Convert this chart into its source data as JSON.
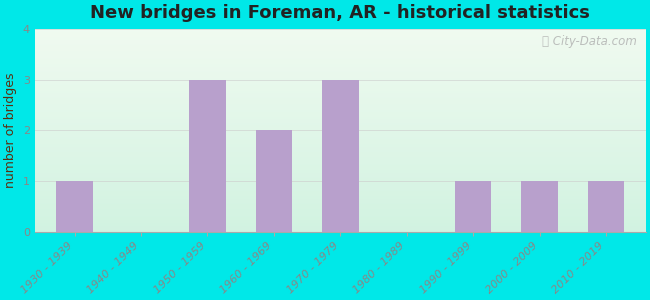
{
  "title": "New bridges in Foreman, AR - historical statistics",
  "categories": [
    "1930 - 1939",
    "1940 - 1949",
    "1950 - 1959",
    "1960 - 1969",
    "1970 - 1979",
    "1980 - 1989",
    "1990 - 1999",
    "2000 - 2009",
    "2010 - 2019"
  ],
  "values": [
    1,
    0,
    3,
    2,
    3,
    0,
    1,
    1,
    1
  ],
  "bar_color": "#b8a0cc",
  "ylabel": "number of bridges",
  "ylim": [
    0,
    4
  ],
  "yticks": [
    0,
    1,
    2,
    3,
    4
  ],
  "background_outer": "#00e8e8",
  "grid_color": "#cccccc",
  "title_fontsize": 13,
  "ylabel_fontsize": 9,
  "tick_fontsize": 8,
  "watermark": "City-Data.com",
  "title_color": "#222222",
  "ylabel_color": "#5a3010",
  "tick_color": "#888888",
  "bar_width": 0.55
}
